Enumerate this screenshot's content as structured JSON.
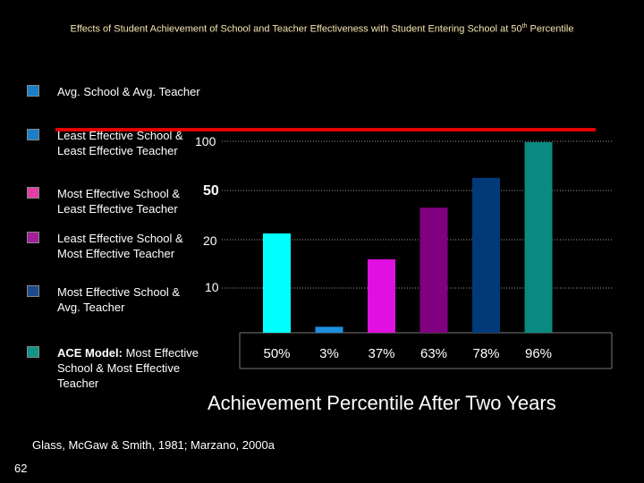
{
  "title": {
    "prefix": "Effects of Student Achievement of School and Teacher Effectiveness with Student Entering School at 50",
    "sup": "th",
    "suffix": " Percentile"
  },
  "legend": [
    {
      "label": "Avg. School & Avg. Teacher",
      "bold": "",
      "color": "#1a7fc8"
    },
    {
      "label": "Least Effective School & Least Effective Teacher",
      "bold": "",
      "color": "#1a7fc8"
    },
    {
      "label": "Most Effective School & Least Effective Teacher",
      "bold": "",
      "color": "#e23fa4"
    },
    {
      "label": "Least Effective School & Most Effective Teacher",
      "bold": "",
      "color": "#a0209a"
    },
    {
      "label": "Most Effective School & Avg. Teacher",
      "bold": "",
      "color": "#1d4a8c"
    },
    {
      "label": " Most Effective School & Most Effective Teacher",
      "bold": "ACE Model:",
      "color": "#0f9488"
    }
  ],
  "reference_labels": [
    "100",
    "50",
    "20",
    "10"
  ],
  "chart_data": {
    "type": "bar",
    "categories": [
      "50%",
      "3%",
      "37%",
      "63%",
      "78%",
      "96%"
    ],
    "values": [
      50,
      3,
      37,
      63,
      78,
      96
    ],
    "colors": [
      "#00ffff",
      "#1e90e0",
      "#e010e0",
      "#800080",
      "#003a78",
      "#0a8a80"
    ],
    "xlabel": "Achievement Percentile After Two Years",
    "ylim": [
      0,
      100
    ]
  },
  "citation": "Glass, McGaw & Smith, 1981; Marzano, 2000a",
  "slide_number": "62"
}
